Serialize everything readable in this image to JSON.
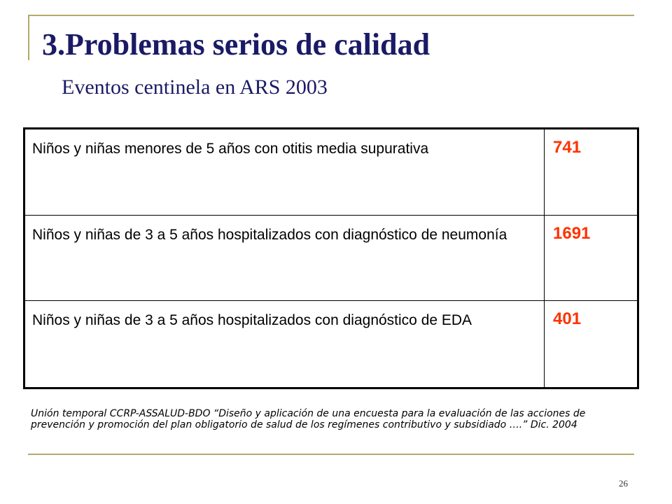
{
  "slide": {
    "title": "3.Problemas serios de calidad",
    "subtitle": "Eventos centinela en ARS 2003",
    "rows": [
      {
        "description": "Niños y niñas menores de 5 años con otitis media supurativa",
        "value": "741"
      },
      {
        "description": "Niños y niñas de 3 a 5 años hospitalizados con diagnóstico de neumonía",
        "value": "1691"
      },
      {
        "description": "Niños y niñas de 3 a 5 años hospitalizados con diagnóstico de EDA",
        "value": "401"
      }
    ],
    "source": "Unión temporal CCRP-ASSALUD-BDO “Diseño y aplicación de una encuesta para la evaluación de las acciones de prevención y promoción del plan obligatorio  de salud de los regímenes contributivo y subsidiado ….” Dic. 2004",
    "page_number": "26"
  },
  "colors": {
    "accent_rule": "#b5a96a",
    "title": "#1a1a66",
    "value": "#ff3300"
  }
}
